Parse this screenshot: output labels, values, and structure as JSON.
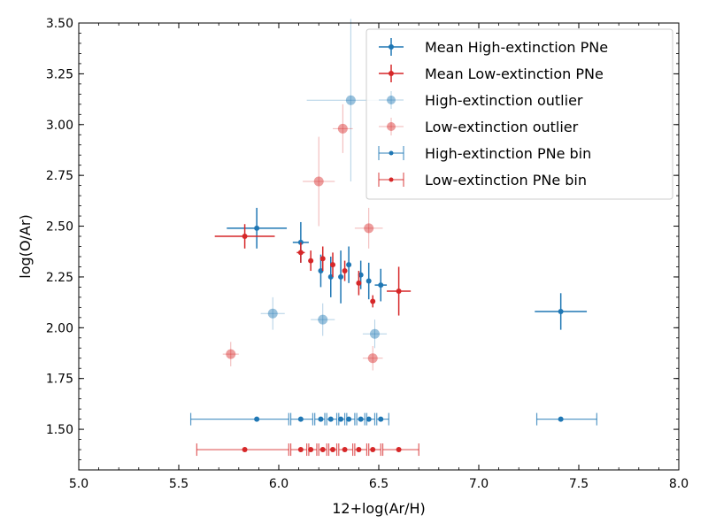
{
  "chart_data": {
    "type": "scatter",
    "xlabel": "12+log(Ar/H)",
    "ylabel": "log(O/Ar)",
    "xlim": [
      5.0,
      8.0
    ],
    "ylim": [
      1.3,
      3.5
    ],
    "xticks": [
      "5.0",
      "5.5",
      "6.0",
      "6.5",
      "7.0",
      "7.5",
      "8.0"
    ],
    "yticks": [
      "1.50",
      "1.75",
      "2.00",
      "2.25",
      "2.50",
      "2.75",
      "3.00",
      "3.25",
      "3.50"
    ],
    "legend_position": "top-right",
    "colors": {
      "high": "#1f77b4",
      "low": "#d62728"
    },
    "series": [
      {
        "name": "Mean High-extinction PNe",
        "style": "mean",
        "color": "#1f77b4",
        "points": [
          {
            "x": 5.89,
            "y": 2.49,
            "xerr": 0.15,
            "yerr": 0.1
          },
          {
            "x": 6.11,
            "y": 2.42,
            "xerr": 0.04,
            "yerr": 0.1
          },
          {
            "x": 6.21,
            "y": 2.28,
            "xerr": 0.0,
            "yerr": 0.08
          },
          {
            "x": 6.26,
            "y": 2.25,
            "xerr": 0.0,
            "yerr": 0.1
          },
          {
            "x": 6.31,
            "y": 2.25,
            "xerr": 0.0,
            "yerr": 0.13
          },
          {
            "x": 6.35,
            "y": 2.31,
            "xerr": 0.0,
            "yerr": 0.09
          },
          {
            "x": 6.41,
            "y": 2.26,
            "xerr": 0.0,
            "yerr": 0.07
          },
          {
            "x": 6.45,
            "y": 2.23,
            "xerr": 0.0,
            "yerr": 0.09
          },
          {
            "x": 6.51,
            "y": 2.21,
            "xerr": 0.03,
            "yerr": 0.08
          },
          {
            "x": 7.41,
            "y": 2.08,
            "xerr": 0.13,
            "yerr": 0.09
          }
        ]
      },
      {
        "name": "Mean Low-extinction PNe",
        "style": "mean",
        "color": "#d62728",
        "points": [
          {
            "x": 5.83,
            "y": 2.45,
            "xerr": 0.15,
            "yerr": 0.06
          },
          {
            "x": 6.11,
            "y": 2.37,
            "xerr": 0.02,
            "yerr": 0.05
          },
          {
            "x": 6.16,
            "y": 2.33,
            "xerr": 0.0,
            "yerr": 0.05
          },
          {
            "x": 6.22,
            "y": 2.34,
            "xerr": 0.0,
            "yerr": 0.06
          },
          {
            "x": 6.27,
            "y": 2.31,
            "xerr": 0.0,
            "yerr": 0.06
          },
          {
            "x": 6.33,
            "y": 2.28,
            "xerr": 0.0,
            "yerr": 0.05
          },
          {
            "x": 6.4,
            "y": 2.22,
            "xerr": 0.0,
            "yerr": 0.06
          },
          {
            "x": 6.47,
            "y": 2.13,
            "xerr": 0.0,
            "yerr": 0.03
          },
          {
            "x": 6.6,
            "y": 2.18,
            "xerr": 0.06,
            "yerr": 0.12
          }
        ]
      },
      {
        "name": "High-extinction outlier",
        "style": "outlier",
        "color": "#1f77b4",
        "points": [
          {
            "x": 5.97,
            "y": 2.07,
            "xerr": 0.06,
            "yerr": 0.08
          },
          {
            "x": 6.22,
            "y": 2.04,
            "xerr": 0.06,
            "yerr": 0.08
          },
          {
            "x": 6.36,
            "y": 3.12,
            "xerr": 0.22,
            "yerr": 0.4
          },
          {
            "x": 6.48,
            "y": 1.97,
            "xerr": 0.06,
            "yerr": 0.07
          }
        ]
      },
      {
        "name": "Low-extinction outlier",
        "style": "outlier",
        "color": "#d62728",
        "points": [
          {
            "x": 5.76,
            "y": 1.87,
            "xerr": 0.04,
            "yerr": 0.06
          },
          {
            "x": 6.2,
            "y": 2.72,
            "xerr": 0.08,
            "yerr": 0.22
          },
          {
            "x": 6.32,
            "y": 2.98,
            "xerr": 0.05,
            "yerr": 0.12
          },
          {
            "x": 6.45,
            "y": 2.49,
            "xerr": 0.07,
            "yerr": 0.1
          },
          {
            "x": 6.47,
            "y": 1.85,
            "xerr": 0.05,
            "yerr": 0.06
          }
        ]
      },
      {
        "name": "High-extinction PNe bin",
        "style": "bin",
        "color": "#1f77b4",
        "y": 1.55,
        "points": [
          {
            "x": 5.89,
            "lo": 5.56,
            "hi": 6.05
          },
          {
            "x": 6.11,
            "lo": 6.06,
            "hi": 6.17
          },
          {
            "x": 6.21,
            "lo": 6.18,
            "hi": 6.23
          },
          {
            "x": 6.26,
            "lo": 6.24,
            "hi": 6.29
          },
          {
            "x": 6.31,
            "lo": 6.3,
            "hi": 6.33
          },
          {
            "x": 6.35,
            "lo": 6.34,
            "hi": 6.38
          },
          {
            "x": 6.41,
            "lo": 6.39,
            "hi": 6.43
          },
          {
            "x": 6.45,
            "lo": 6.44,
            "hi": 6.48
          },
          {
            "x": 6.51,
            "lo": 6.49,
            "hi": 6.55
          },
          {
            "x": 7.41,
            "lo": 7.29,
            "hi": 7.59
          }
        ]
      },
      {
        "name": "Low-extinction PNe bin",
        "style": "bin",
        "color": "#d62728",
        "y": 1.4,
        "points": [
          {
            "x": 5.83,
            "lo": 5.59,
            "hi": 6.05
          },
          {
            "x": 6.11,
            "lo": 6.06,
            "hi": 6.14
          },
          {
            "x": 6.16,
            "lo": 6.15,
            "hi": 6.19
          },
          {
            "x": 6.22,
            "lo": 6.2,
            "hi": 6.24
          },
          {
            "x": 6.27,
            "lo": 6.25,
            "hi": 6.29
          },
          {
            "x": 6.33,
            "lo": 6.3,
            "hi": 6.37
          },
          {
            "x": 6.4,
            "lo": 6.38,
            "hi": 6.44
          },
          {
            "x": 6.47,
            "lo": 6.45,
            "hi": 6.51
          },
          {
            "x": 6.6,
            "lo": 6.52,
            "hi": 6.7
          }
        ]
      }
    ]
  }
}
